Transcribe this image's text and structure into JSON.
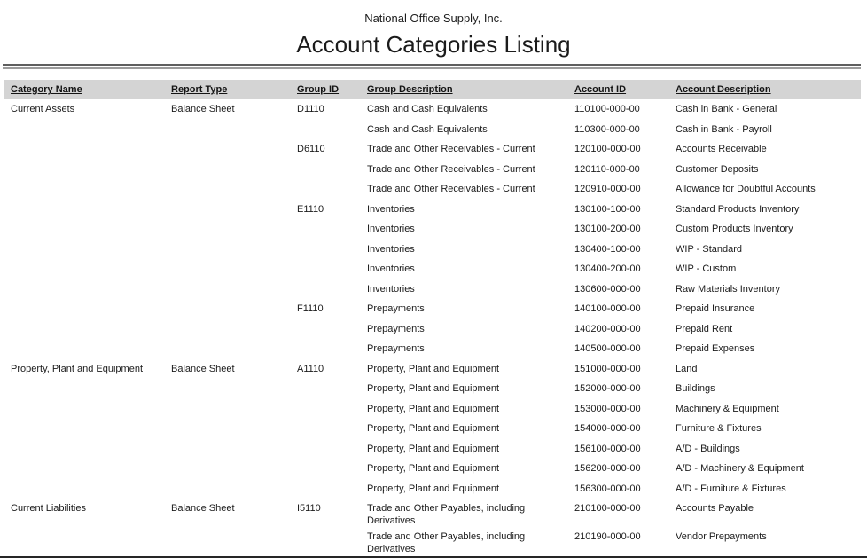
{
  "report": {
    "company": "National Office Supply, Inc.",
    "title": "Account Categories Listing"
  },
  "colors": {
    "header_band": "#d4d4d4",
    "text": "#1b1b1b",
    "rule_dark": "#5f5f5f",
    "rule_light": "#9b9b9b",
    "bottom_edge": "#262626"
  },
  "table": {
    "columns": [
      {
        "key": "category",
        "label": "Category Name"
      },
      {
        "key": "report-type",
        "label": "Report Type"
      },
      {
        "key": "group-id",
        "label": "Group ID"
      },
      {
        "key": "group-description",
        "label": "Group Description"
      },
      {
        "key": "account-id",
        "label": "Account ID"
      },
      {
        "key": "account-description",
        "label": "Account Description"
      }
    ],
    "rows": [
      [
        "Current Assets",
        "Balance Sheet",
        "D1110",
        "Cash and Cash Equivalents",
        "110100-000-00",
        "Cash in Bank - General"
      ],
      [
        "",
        "",
        "",
        "Cash and Cash Equivalents",
        "110300-000-00",
        "Cash in Bank - Payroll"
      ],
      [
        "",
        "",
        "D6110",
        "Trade and Other Receivables - Current",
        "120100-000-00",
        "Accounts Receivable"
      ],
      [
        "",
        "",
        "",
        "Trade and Other Receivables - Current",
        "120110-000-00",
        "Customer Deposits"
      ],
      [
        "",
        "",
        "",
        "Trade and Other Receivables - Current",
        "120910-000-00",
        "Allowance for Doubtful Accounts"
      ],
      [
        "",
        "",
        "E1110",
        "Inventories",
        "130100-100-00",
        "Standard Products Inventory"
      ],
      [
        "",
        "",
        "",
        "Inventories",
        "130100-200-00",
        "Custom Products Inventory"
      ],
      [
        "",
        "",
        "",
        "Inventories",
        "130400-100-00",
        "WIP - Standard"
      ],
      [
        "",
        "",
        "",
        "Inventories",
        "130400-200-00",
        "WIP - Custom"
      ],
      [
        "",
        "",
        "",
        "Inventories",
        "130600-000-00",
        "Raw Materials Inventory"
      ],
      [
        "",
        "",
        "F1110",
        "Prepayments",
        "140100-000-00",
        "Prepaid Insurance"
      ],
      [
        "",
        "",
        "",
        "Prepayments",
        "140200-000-00",
        "Prepaid Rent"
      ],
      [
        "",
        "",
        "",
        "Prepayments",
        "140500-000-00",
        "Prepaid Expenses"
      ],
      [
        "Property, Plant and Equipment",
        "Balance Sheet",
        "A1110",
        "Property, Plant and Equipment",
        "151000-000-00",
        "Land"
      ],
      [
        "",
        "",
        "",
        "Property, Plant and Equipment",
        "152000-000-00",
        "Buildings"
      ],
      [
        "",
        "",
        "",
        "Property, Plant and Equipment",
        "153000-000-00",
        "Machinery & Equipment"
      ],
      [
        "",
        "",
        "",
        "Property, Plant and Equipment",
        "154000-000-00",
        "Furniture & Fixtures"
      ],
      [
        "",
        "",
        "",
        "Property, Plant and Equipment",
        "156100-000-00",
        "A/D - Buildings"
      ],
      [
        "",
        "",
        "",
        "Property, Plant and Equipment",
        "156200-000-00",
        "A/D - Machinery & Equipment"
      ],
      [
        "",
        "",
        "",
        "Property, Plant and Equipment",
        "156300-000-00",
        "A/D - Furniture & Fixtures"
      ],
      [
        "Current Liabilities",
        "Balance Sheet",
        "I5110",
        "Trade and Other Payables, including Derivatives",
        "210100-000-00",
        "Accounts Payable"
      ],
      [
        "",
        "",
        "",
        "Trade and Other Payables, including Derivatives",
        "210190-000-00",
        "Vendor Prepayments"
      ]
    ]
  }
}
